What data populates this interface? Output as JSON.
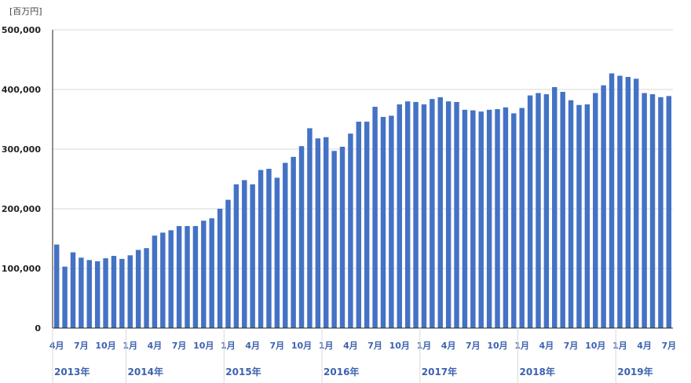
{
  "chart_data": {
    "type": "bar",
    "unit_label": "[百万円]",
    "ylim": [
      0,
      500000
    ],
    "y_ticks": [
      "0",
      "100,000",
      "200,000",
      "300,000",
      "400,000",
      "500,000"
    ],
    "y_tick_values": [
      0,
      100000,
      200000,
      300000,
      400000,
      500000
    ],
    "grid": true,
    "bar_color": "#4472c4",
    "x_tick_labels": [
      {
        "index": 0,
        "label": "4月"
      },
      {
        "index": 3,
        "label": "7月"
      },
      {
        "index": 6,
        "label": "10月"
      },
      {
        "index": 9,
        "label": "1月"
      },
      {
        "index": 12,
        "label": "4月"
      },
      {
        "index": 15,
        "label": "7月"
      },
      {
        "index": 18,
        "label": "10月"
      },
      {
        "index": 21,
        "label": "1月"
      },
      {
        "index": 24,
        "label": "4月"
      },
      {
        "index": 27,
        "label": "7月"
      },
      {
        "index": 30,
        "label": "10月"
      },
      {
        "index": 33,
        "label": "1月"
      },
      {
        "index": 36,
        "label": "4月"
      },
      {
        "index": 39,
        "label": "7月"
      },
      {
        "index": 42,
        "label": "10月"
      },
      {
        "index": 45,
        "label": "1月"
      },
      {
        "index": 48,
        "label": "4月"
      },
      {
        "index": 51,
        "label": "7月"
      },
      {
        "index": 54,
        "label": "10月"
      },
      {
        "index": 57,
        "label": "1月"
      },
      {
        "index": 60,
        "label": "4月"
      },
      {
        "index": 63,
        "label": "7月"
      },
      {
        "index": 66,
        "label": "10月"
      },
      {
        "index": 69,
        "label": "1月"
      },
      {
        "index": 72,
        "label": "4月"
      },
      {
        "index": 75,
        "label": "7月"
      }
    ],
    "year_groups": [
      {
        "label": "2013年",
        "start": 0,
        "end": 8
      },
      {
        "label": "2014年",
        "start": 9,
        "end": 20
      },
      {
        "label": "2015年",
        "start": 21,
        "end": 32
      },
      {
        "label": "2016年",
        "start": 33,
        "end": 44
      },
      {
        "label": "2017年",
        "start": 45,
        "end": 56
      },
      {
        "label": "2018年",
        "start": 57,
        "end": 68
      },
      {
        "label": "2019年",
        "start": 69,
        "end": 75
      }
    ],
    "values": [
      140000,
      103000,
      127000,
      118000,
      114000,
      112000,
      117000,
      121000,
      116000,
      122000,
      131000,
      134000,
      155000,
      160000,
      164000,
      171000,
      171000,
      171000,
      180000,
      184000,
      200000,
      215000,
      241000,
      248000,
      241000,
      265000,
      267000,
      252000,
      277000,
      287000,
      305000,
      335000,
      318000,
      320000,
      297000,
      304000,
      326000,
      346000,
      346000,
      371000,
      354000,
      356000,
      375000,
      380000,
      379000,
      375000,
      384000,
      387000,
      380000,
      379000,
      366000,
      365000,
      363000,
      366000,
      367000,
      370000,
      360000,
      369000,
      390000,
      394000,
      392000,
      404000,
      396000,
      382000,
      374000,
      375000,
      394000,
      407000,
      427000,
      423000,
      421000,
      418000,
      394000,
      392000,
      387000,
      389000
    ]
  }
}
